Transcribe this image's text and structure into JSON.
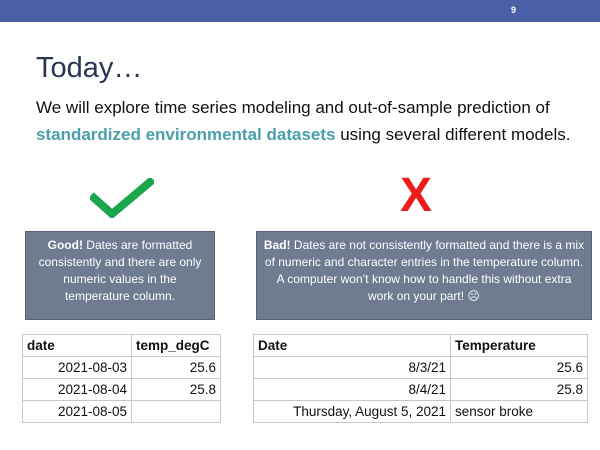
{
  "slide_number": "9",
  "title": "Today…",
  "body": {
    "text_before": "We will explore time series modeling and out-of-sample prediction of ",
    "highlight": "standardized environmental datasets",
    "text_after": " using several different models."
  },
  "good": {
    "label": "Good!",
    "text": " Dates are formatted consistently and there are only numeric values in the temperature column."
  },
  "bad": {
    "label": "Bad!",
    "text": " Dates are not consistently formatted and there is a mix of numeric and character entries in the temperature column. A computer won’t know how to handle this without extra work on your part! ☹"
  },
  "xmark": "X",
  "table_good": {
    "headers": [
      "date",
      "temp_degC"
    ],
    "rows": [
      [
        "2021-08-03",
        "25.6"
      ],
      [
        "2021-08-04",
        "25.8"
      ],
      [
        "2021-08-05",
        ""
      ]
    ]
  },
  "table_bad": {
    "headers": [
      "Date",
      "Temperature"
    ],
    "rows": [
      [
        "8/3/21",
        "25.6"
      ],
      [
        "8/4/21",
        "25.8"
      ],
      [
        "Thursday, August 5, 2021",
        "sensor broke"
      ]
    ]
  },
  "colors": {
    "topbar": "#4a5fa6",
    "title": "#2b3652",
    "highlight": "#4aa0ab",
    "check": "#1aa64b",
    "x": "#ef1c1c",
    "box": "#6e7b90"
  }
}
